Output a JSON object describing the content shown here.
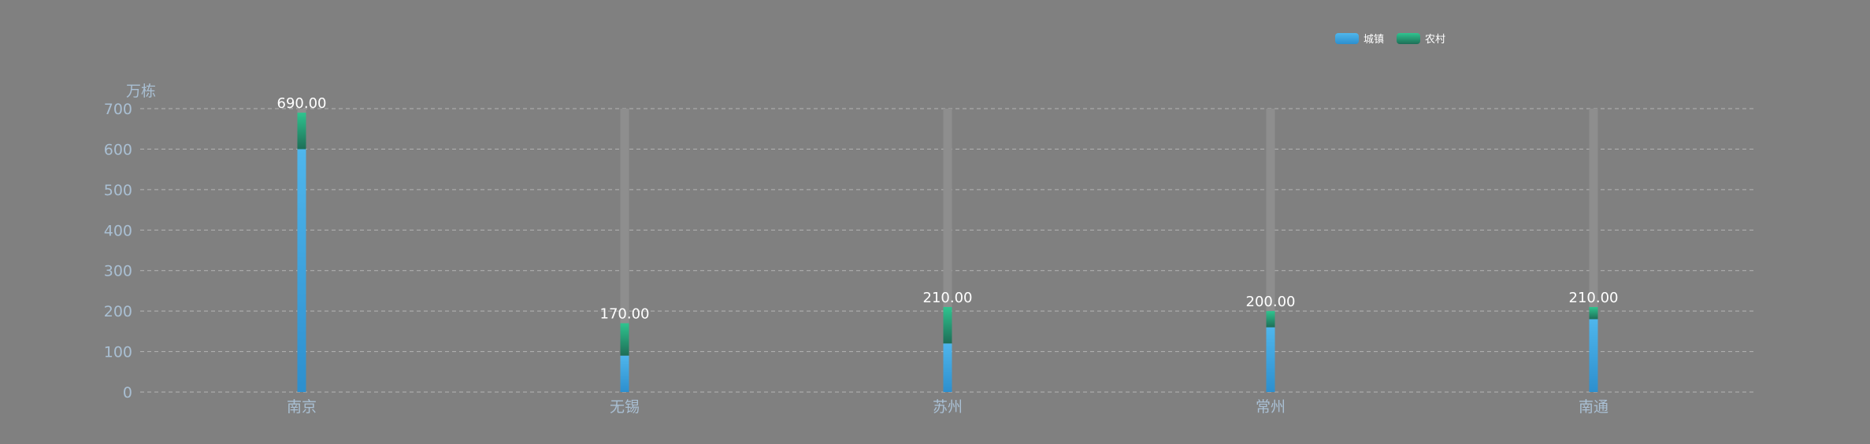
{
  "chart_data": {
    "type": "bar",
    "stacked": true,
    "categories": [
      "南京",
      "无锡",
      "苏州",
      "常州",
      "南通"
    ],
    "series": [
      {
        "name": "城镇",
        "values": [
          600,
          90,
          120,
          160,
          180
        ]
      },
      {
        "name": "农村",
        "values": [
          90,
          80,
          90,
          40,
          30
        ]
      }
    ],
    "totals": [
      "690.00",
      "170.00",
      "210.00",
      "200.00",
      "210.00"
    ],
    "background_max": 700,
    "y_unit": "万栋",
    "ylim": [
      0,
      700
    ],
    "yticks": [
      "0",
      "100",
      "200",
      "300",
      "400",
      "500",
      "600",
      "700"
    ],
    "grid": true,
    "legend_position": "top-right",
    "colors": {
      "background": "#808080",
      "urban_top": "#4fb6ec",
      "urban_bottom": "#2d8fce",
      "rural_top": "#2fc48f",
      "rural_bottom": "#1e7a5e",
      "track": "#8e8e8e",
      "grid": "#b4b4b4",
      "axis_text": "#a9bfd3"
    }
  }
}
